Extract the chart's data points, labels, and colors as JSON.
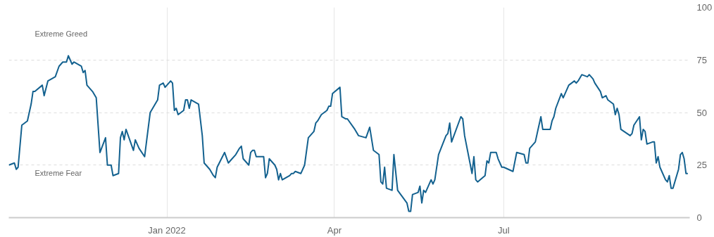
{
  "chart_data": {
    "type": "line",
    "x": [
      "2021-10-08",
      "2021-10-11",
      "2021-10-12",
      "2021-10-13",
      "2021-10-15",
      "2021-10-18",
      "2021-10-20",
      "2021-10-21",
      "2021-10-22",
      "2021-10-26",
      "2021-10-27",
      "2021-10-29",
      "2021-11-02",
      "2021-11-04",
      "2021-11-06",
      "2021-11-08",
      "2021-11-09",
      "2021-11-11",
      "2021-11-12",
      "2021-11-16",
      "2021-11-17",
      "2021-11-18",
      "2021-11-19",
      "2021-11-22",
      "2021-11-24",
      "2021-11-26",
      "2021-11-29",
      "2021-11-30",
      "2021-12-02",
      "2021-12-03",
      "2021-12-06",
      "2021-12-07",
      "2021-12-08",
      "2021-12-09",
      "2021-12-10",
      "2021-12-14",
      "2021-12-15",
      "2021-12-17",
      "2021-12-20",
      "2021-12-21",
      "2021-12-23",
      "2021-12-27",
      "2021-12-28",
      "2021-12-30",
      "2021-12-31",
      "2022-01-03",
      "2022-01-04",
      "2022-01-05",
      "2022-01-06",
      "2022-01-07",
      "2022-01-10",
      "2022-01-11",
      "2022-01-12",
      "2022-01-13",
      "2022-01-14",
      "2022-01-18",
      "2022-01-20",
      "2022-01-21",
      "2022-01-24",
      "2022-01-26",
      "2022-01-27",
      "2022-01-28",
      "2022-02-01",
      "2022-02-03",
      "2022-02-04",
      "2022-02-07",
      "2022-02-09",
      "2022-02-10",
      "2022-02-11",
      "2022-02-14",
      "2022-02-15",
      "2022-02-16",
      "2022-02-17",
      "2022-02-18",
      "2022-02-22",
      "2022-02-23",
      "2022-02-24",
      "2022-02-25",
      "2022-02-28",
      "2022-03-01",
      "2022-03-02",
      "2022-03-03",
      "2022-03-04",
      "2022-03-08",
      "2022-03-09",
      "2022-03-10",
      "2022-03-11",
      "2022-03-14",
      "2022-03-16",
      "2022-03-18",
      "2022-03-21",
      "2022-03-22",
      "2022-03-23",
      "2022-03-25",
      "2022-03-28",
      "2022-03-29",
      "2022-03-30",
      "2022-03-31",
      "2022-04-04",
      "2022-04-05",
      "2022-04-07",
      "2022-04-08",
      "2022-04-12",
      "2022-04-14",
      "2022-04-18",
      "2022-04-20",
      "2022-04-22",
      "2022-04-25",
      "2022-04-26",
      "2022-04-27",
      "2022-04-28",
      "2022-04-29",
      "2022-05-02",
      "2022-05-03",
      "2022-05-05",
      "2022-05-10",
      "2022-05-11",
      "2022-05-12",
      "2022-05-13",
      "2022-05-16",
      "2022-05-17",
      "2022-05-18",
      "2022-05-19",
      "2022-05-20",
      "2022-05-23",
      "2022-05-24",
      "2022-05-25",
      "2022-05-27",
      "2022-05-31",
      "2022-06-01",
      "2022-06-02",
      "2022-06-03",
      "2022-06-08",
      "2022-06-09",
      "2022-06-10",
      "2022-06-14",
      "2022-06-15",
      "2022-06-16",
      "2022-06-17",
      "2022-06-21",
      "2022-06-22",
      "2022-06-23",
      "2022-06-24",
      "2022-06-27",
      "2022-06-28",
      "2022-06-30",
      "2022-07-01",
      "2022-07-06",
      "2022-07-08",
      "2022-07-12",
      "2022-07-13",
      "2022-07-14",
      "2022-07-15",
      "2022-07-18",
      "2022-07-19",
      "2022-07-21",
      "2022-07-22",
      "2022-07-26",
      "2022-07-27",
      "2022-07-28",
      "2022-07-29",
      "2022-08-01",
      "2022-08-02",
      "2022-08-05",
      "2022-08-08",
      "2022-08-09",
      "2022-08-10",
      "2022-08-12",
      "2022-08-15",
      "2022-08-16",
      "2022-08-18",
      "2022-08-19",
      "2022-08-22",
      "2022-08-23",
      "2022-08-25",
      "2022-08-26",
      "2022-08-29",
      "2022-08-30",
      "2022-08-31",
      "2022-09-01",
      "2022-09-02",
      "2022-09-07",
      "2022-09-08",
      "2022-09-09",
      "2022-09-12",
      "2022-09-13",
      "2022-09-14",
      "2022-09-15",
      "2022-09-16",
      "2022-09-19",
      "2022-09-20",
      "2022-09-21",
      "2022-09-22",
      "2022-09-23",
      "2022-09-26",
      "2022-09-27",
      "2022-09-28",
      "2022-09-29",
      "2022-09-30",
      "2022-10-03",
      "2022-10-04",
      "2022-10-05",
      "2022-10-06",
      "2022-10-07",
      "2022-10-08"
    ],
    "series": [
      {
        "color": "#13618f",
        "values": [
          25,
          26,
          23,
          24,
          44,
          46,
          54,
          60,
          60,
          63,
          58,
          65,
          67,
          72,
          74,
          74,
          77,
          73,
          74,
          72,
          69,
          70,
          63,
          60,
          57,
          31,
          38,
          25,
          25,
          20,
          21,
          38,
          41,
          37,
          42,
          32,
          37,
          33,
          29,
          36,
          50,
          56,
          63,
          64,
          62,
          65,
          64,
          51,
          52,
          49,
          51,
          56,
          56,
          52,
          56,
          54,
          39,
          26,
          23,
          20,
          19,
          24,
          31,
          26,
          27,
          30,
          33,
          34,
          28,
          25,
          31,
          32,
          32,
          29,
          29,
          19,
          21,
          28,
          25,
          23,
          18,
          21,
          18,
          20,
          21,
          21,
          22,
          21,
          25,
          38,
          41,
          45,
          46,
          49,
          51,
          53,
          53,
          59,
          62,
          48,
          47,
          47,
          42,
          39,
          38,
          43,
          32,
          30,
          17,
          16,
          24,
          14,
          13,
          30,
          13,
          7,
          3,
          3,
          11,
          12,
          15,
          7,
          13,
          12,
          18,
          16,
          18,
          30,
          39,
          40,
          45,
          36,
          48,
          47,
          39,
          21,
          29,
          18,
          17,
          20,
          27,
          26,
          31,
          31,
          28,
          24,
          24,
          22,
          31,
          30,
          26,
          26,
          33,
          36,
          40,
          48,
          42,
          42,
          46,
          48,
          52,
          59,
          57,
          63,
          65,
          64,
          65,
          68,
          67,
          68,
          66,
          64,
          60,
          57,
          58,
          56,
          54,
          49,
          52,
          49,
          42,
          39,
          40,
          44,
          48,
          37,
          42,
          41,
          35,
          36,
          36,
          26,
          29,
          24,
          18,
          17,
          20,
          14,
          14,
          23,
          30,
          31,
          28,
          21,
          21
        ]
      }
    ],
    "xlim": [
      "2021-10-08",
      "2022-10-09"
    ],
    "xticks": [
      {
        "value": "2022-01-01",
        "label": "Jan 2022"
      },
      {
        "value": "2022-04-01",
        "label": "Apr"
      },
      {
        "value": "2022-07-01",
        "label": "Jul"
      }
    ],
    "ylim": [
      0,
      100
    ],
    "yticks": [
      0,
      25,
      50,
      75,
      100
    ],
    "grid": true,
    "marker": "none",
    "line_style": "solid",
    "annotations": [
      "Extreme Greed",
      "Extreme Fear"
    ]
  }
}
